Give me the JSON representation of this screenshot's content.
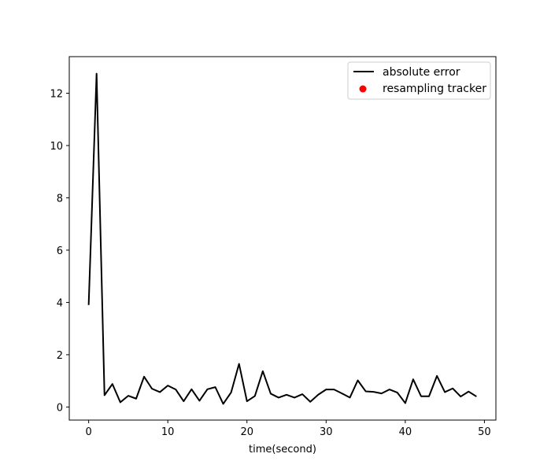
{
  "chart_data": {
    "type": "line",
    "title": "",
    "xlabel": "time(second)",
    "ylabel": "",
    "xlim": [
      -2.45,
      51.45
    ],
    "ylim": [
      -0.5,
      13.4
    ],
    "xticks": [
      0,
      10,
      20,
      30,
      40,
      50
    ],
    "yticks": [
      0,
      2,
      4,
      6,
      8,
      10,
      12
    ],
    "grid": false,
    "legend_position": "upper right",
    "series": [
      {
        "name": "absolute error",
        "kind": "line",
        "color": "#000000",
        "x": [
          0,
          1,
          2,
          3,
          4,
          5,
          6,
          7,
          8,
          9,
          10,
          11,
          12,
          13,
          14,
          15,
          16,
          17,
          18,
          19,
          20,
          21,
          22,
          23,
          24,
          25,
          26,
          27,
          28,
          29,
          30,
          31,
          32,
          33,
          34,
          35,
          36,
          37,
          38,
          39,
          40,
          41,
          42,
          43,
          44,
          45,
          46,
          47,
          48,
          49
        ],
        "y": [
          3.9,
          12.75,
          0.45,
          0.88,
          0.18,
          0.43,
          0.32,
          1.16,
          0.7,
          0.57,
          0.82,
          0.67,
          0.22,
          0.68,
          0.24,
          0.68,
          0.76,
          0.12,
          0.56,
          1.65,
          0.22,
          0.42,
          1.37,
          0.51,
          0.36,
          0.47,
          0.36,
          0.49,
          0.2,
          0.47,
          0.67,
          0.67,
          0.52,
          0.36,
          1.02,
          0.6,
          0.58,
          0.52,
          0.67,
          0.55,
          0.15,
          1.06,
          0.41,
          0.41,
          1.19,
          0.57,
          0.71,
          0.4,
          0.59,
          0.4
        ]
      },
      {
        "name": "resampling tracker",
        "kind": "scatter",
        "color": "#ff0000",
        "x": [],
        "y": []
      }
    ]
  }
}
